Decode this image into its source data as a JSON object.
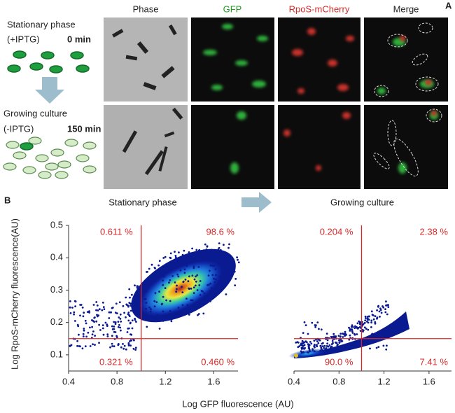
{
  "panel_a": {
    "label": "A",
    "conditions": [
      {
        "name": "Stationary phase",
        "treatment": "(+IPTG)",
        "time": "0 min"
      },
      {
        "name": "Growing culture",
        "treatment": "(-IPTG)",
        "time": "150 min"
      }
    ],
    "columns": [
      "Phase",
      "GFP",
      "RpoS-mCherry",
      "Merge"
    ]
  },
  "panel_b_label": "B",
  "chart_data": [
    {
      "type": "scatter",
      "title": "Stationary phase",
      "y_label": "Log RpoS-mCherry fluorescence(AU)",
      "x_label": "Log GFP fluorescence (AU)",
      "xlim": [
        0.4,
        1.8
      ],
      "ylim": [
        0.05,
        0.5
      ],
      "xticks": [
        0.4,
        0.8,
        1.2,
        1.6
      ],
      "yticks": [
        0.1,
        0.2,
        0.3,
        0.4,
        0.5
      ],
      "gate": {
        "x": 1.0,
        "y": 0.15
      },
      "quadrant_labels": {
        "top_left": "0.611 %",
        "top_right": "98.6 %",
        "bottom_left": "0.321 %",
        "bottom_right": "0.460 %"
      }
    },
    {
      "type": "scatter",
      "title": "Growing culture",
      "xlim": [
        0.4,
        1.8
      ],
      "ylim": [
        0.05,
        0.5
      ],
      "xticks": [
        0.4,
        0.8,
        1.2,
        1.6
      ],
      "gate": {
        "x": 1.0,
        "y": 0.15
      },
      "quadrant_labels": {
        "top_left": "0.204 %",
        "top_right": "2.38 %",
        "bottom_left": "90.0 %",
        "bottom_right": "7.41 %"
      }
    }
  ]
}
